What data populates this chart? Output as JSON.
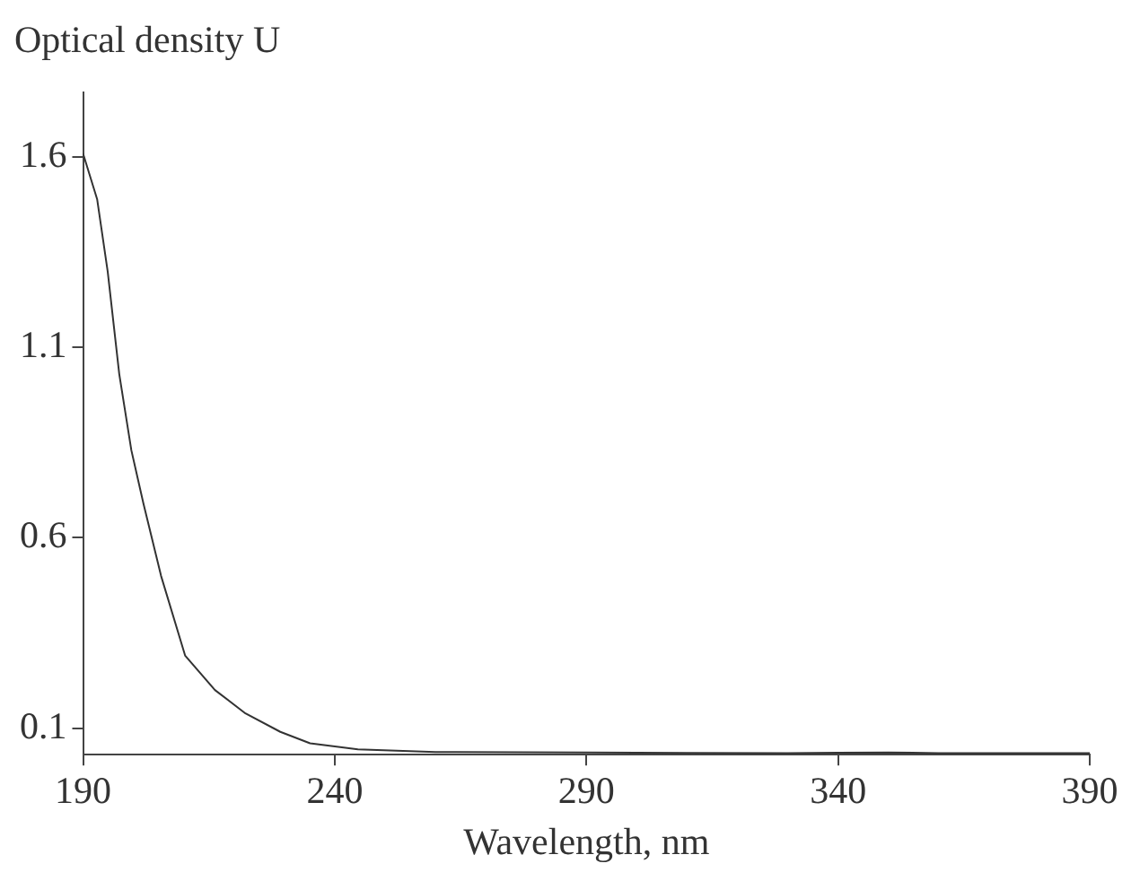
{
  "chart_data": {
    "type": "line",
    "xlabel": "Wavelength, nm",
    "ylabel": "Optical density U",
    "series": [
      {
        "color": "#333333",
        "x": [
          190,
          192.8,
          194.9,
          197.2,
          199.6,
          202,
          205.5,
          210.3,
          216.2,
          222.1,
          229.2,
          235.1,
          244.6,
          260,
          290,
          300,
          330,
          340,
          350,
          360,
          390
        ],
        "values": [
          1.61,
          1.49,
          1.3,
          1.03,
          0.83,
          0.69,
          0.5,
          0.29,
          0.2,
          0.14,
          0.09,
          0.06,
          0.044,
          0.037,
          0.036,
          0.035,
          0.034,
          0.035,
          0.036,
          0.034,
          0.034
        ]
      }
    ],
    "xlim": [
      190,
      390
    ],
    "xticks": [
      190,
      240,
      290,
      340,
      390
    ],
    "ylim": [
      0.03,
      1.77
    ],
    "yticks": [
      0.1,
      0.6,
      1.1,
      1.6
    ],
    "grid": false,
    "legend": false,
    "marker": "none",
    "line_style": "solid"
  }
}
